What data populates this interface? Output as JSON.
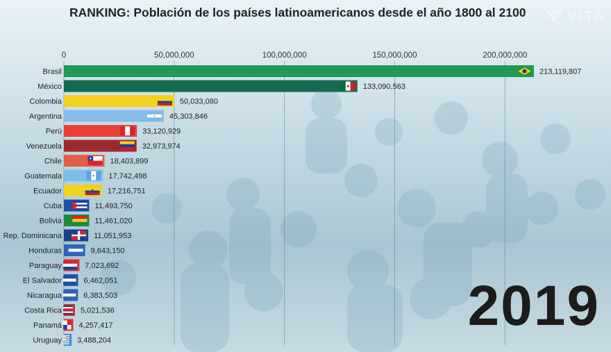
{
  "title": "RANKING: Población de los países latinoamericanos desde el año 1800 al 2100",
  "logo": {
    "text": "VITA",
    "icon": "vita-logo-icon"
  },
  "year": "2019",
  "chart_data": {
    "type": "bar",
    "orientation": "horizontal",
    "xlim": [
      0,
      213119807
    ],
    "x_ticks": [
      0,
      50000000,
      100000000,
      150000000,
      200000000
    ],
    "x_tick_labels": [
      "0",
      "50,000,000",
      "100,000,000",
      "150,000,000",
      "200,000,000"
    ],
    "grid": true,
    "categories": [
      "Brasil",
      "México",
      "Colombia",
      "Argentina",
      "Perú",
      "Venezuela",
      "Chile",
      "Guatemala",
      "Ecuador",
      "Cuba",
      "Bolivia",
      "Rep. Dominicana",
      "Honduras",
      "Paraguay",
      "El Salvador",
      "Nicaragua",
      "Costa Rica",
      "Panamá",
      "Uruguay"
    ],
    "values": [
      213119807,
      133090563,
      50033080,
      45303846,
      33120929,
      32973974,
      18403899,
      17742498,
      17216751,
      11493750,
      11461020,
      11051953,
      9643150,
      7023692,
      6462051,
      6383503,
      5021536,
      4257417,
      3488204
    ],
    "value_labels": [
      "213,119,807",
      "133,090,563",
      "50,033,080",
      "45,303,846",
      "33,120,929",
      "32,973,974",
      "18,403,899",
      "17,742,498",
      "17,216,751",
      "11,493,750",
      "11,461,020",
      "11,051,953",
      "9,643,150",
      "7,023,692",
      "6,462,051",
      "6,383,503",
      "5,021,536",
      "4,257,417",
      "3,488,204"
    ],
    "colors": [
      "#1f9a5a",
      "#146b52",
      "#f3d21f",
      "#86bde6",
      "#e8413a",
      "#9c2a2f",
      "#e45c4a",
      "#7cc0ea",
      "#f0d21f",
      "#1d4fa3",
      "#1d8a3c",
      "#1c3f8c",
      "#2d66b8",
      "#d9322e",
      "#2b58b0",
      "#2e62b7",
      "#cf2e2e",
      "#d9333a",
      "#4d86c9"
    ],
    "flags": [
      "brazil-flag-icon",
      "mexico-flag-icon",
      "colombia-flag-icon",
      "argentina-flag-icon",
      "peru-flag-icon",
      "venezuela-flag-icon",
      "chile-flag-icon",
      "guatemala-flag-icon",
      "ecuador-flag-icon",
      "cuba-flag-icon",
      "bolivia-flag-icon",
      "dominican-republic-flag-icon",
      "honduras-flag-icon",
      "paraguay-flag-icon",
      "el-salvador-flag-icon",
      "nicaragua-flag-icon",
      "costa-rica-flag-icon",
      "panama-flag-icon",
      "uruguay-flag-icon"
    ]
  }
}
